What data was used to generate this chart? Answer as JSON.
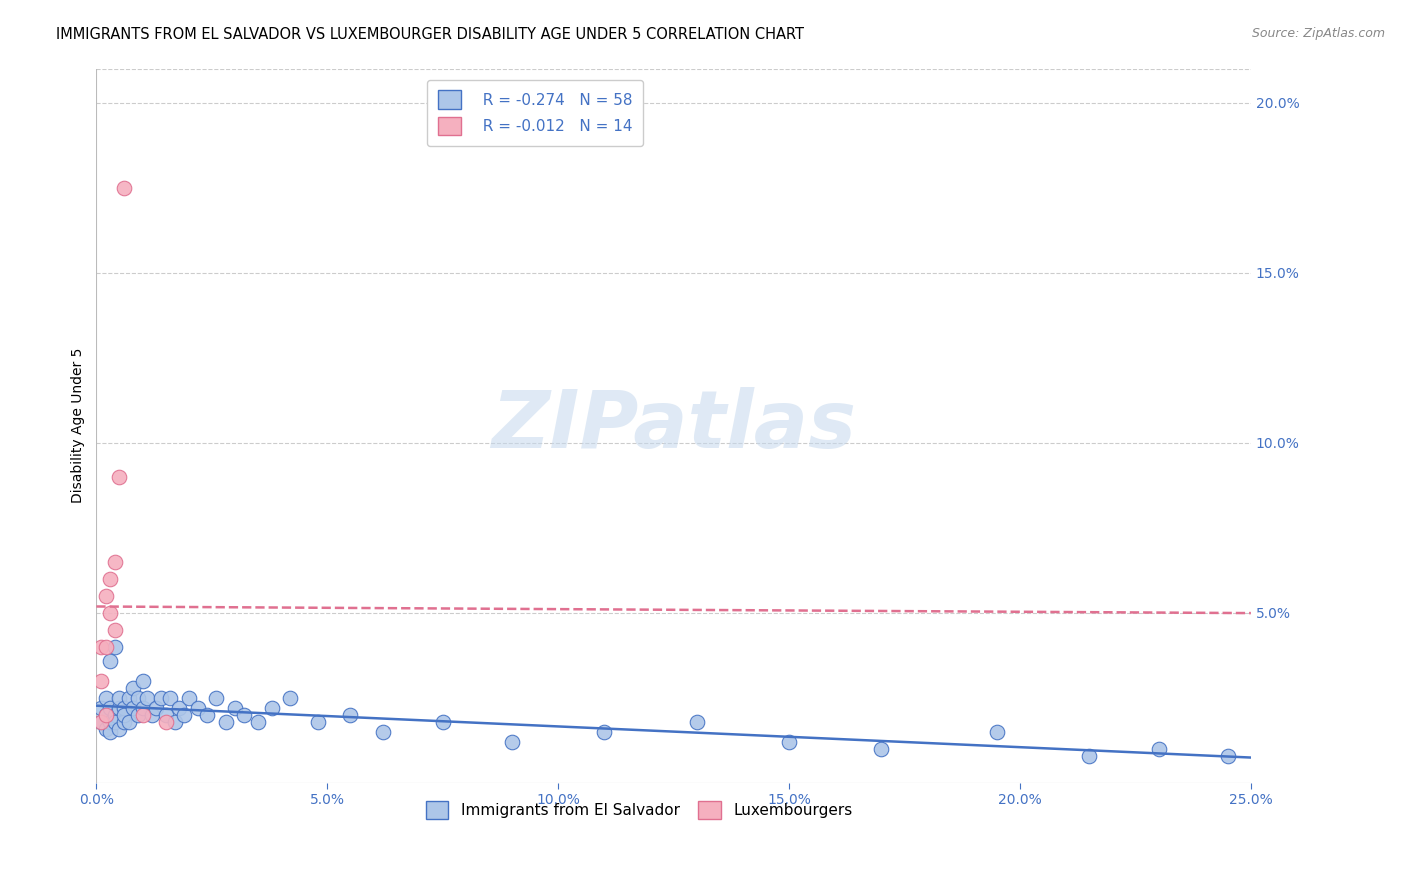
{
  "title": "IMMIGRANTS FROM EL SALVADOR VS LUXEMBOURGER DISABILITY AGE UNDER 5 CORRELATION CHART",
  "source": "Source: ZipAtlas.com",
  "ylabel": "Disability Age Under 5",
  "watermark": "ZIPatlas",
  "el_salvador_x": [
    0.001,
    0.001,
    0.002,
    0.002,
    0.002,
    0.003,
    0.003,
    0.003,
    0.004,
    0.004,
    0.005,
    0.005,
    0.005,
    0.006,
    0.006,
    0.006,
    0.007,
    0.007,
    0.008,
    0.008,
    0.009,
    0.009,
    0.01,
    0.01,
    0.011,
    0.012,
    0.013,
    0.014,
    0.015,
    0.016,
    0.017,
    0.018,
    0.019,
    0.02,
    0.022,
    0.024,
    0.026,
    0.028,
    0.03,
    0.032,
    0.035,
    0.038,
    0.042,
    0.048,
    0.055,
    0.062,
    0.075,
    0.09,
    0.11,
    0.13,
    0.15,
    0.17,
    0.195,
    0.215,
    0.23,
    0.245,
    0.003,
    0.004
  ],
  "el_salvador_y": [
    0.018,
    0.022,
    0.016,
    0.02,
    0.025,
    0.018,
    0.022,
    0.015,
    0.02,
    0.018,
    0.022,
    0.016,
    0.025,
    0.018,
    0.022,
    0.02,
    0.025,
    0.018,
    0.022,
    0.028,
    0.02,
    0.025,
    0.03,
    0.022,
    0.025,
    0.02,
    0.022,
    0.025,
    0.02,
    0.025,
    0.018,
    0.022,
    0.02,
    0.025,
    0.022,
    0.02,
    0.025,
    0.018,
    0.022,
    0.02,
    0.018,
    0.022,
    0.025,
    0.018,
    0.02,
    0.015,
    0.018,
    0.012,
    0.015,
    0.018,
    0.012,
    0.01,
    0.015,
    0.008,
    0.01,
    0.008,
    0.036,
    0.04
  ],
  "luxembourger_x": [
    0.001,
    0.001,
    0.001,
    0.002,
    0.002,
    0.002,
    0.003,
    0.003,
    0.004,
    0.004,
    0.005,
    0.006,
    0.01,
    0.015
  ],
  "luxembourger_y": [
    0.018,
    0.03,
    0.04,
    0.02,
    0.04,
    0.055,
    0.05,
    0.06,
    0.045,
    0.065,
    0.09,
    0.175,
    0.02,
    0.018
  ],
  "el_salvador_color": "#adc6e8",
  "luxembourger_color": "#f5b0bf",
  "el_salvador_line_color": "#4472c4",
  "luxembourger_line_color": "#e07090",
  "xlim": [
    0.0,
    0.25
  ],
  "ylim": [
    0.0,
    0.21
  ],
  "legend_r1": "R = -0.274",
  "legend_n1": "N = 58",
  "legend_r2": "R = -0.012",
  "legend_n2": "N = 14",
  "legend_label1": "Immigrants from El Salvador",
  "legend_label2": "Luxembourgers",
  "title_fontsize": 10.5,
  "axis_label_fontsize": 10,
  "tick_fontsize": 10,
  "legend_fontsize": 11,
  "source_fontsize": 9,
  "background_color": "#ffffff",
  "grid_color": "#cccccc",
  "tick_color": "#4472c4"
}
